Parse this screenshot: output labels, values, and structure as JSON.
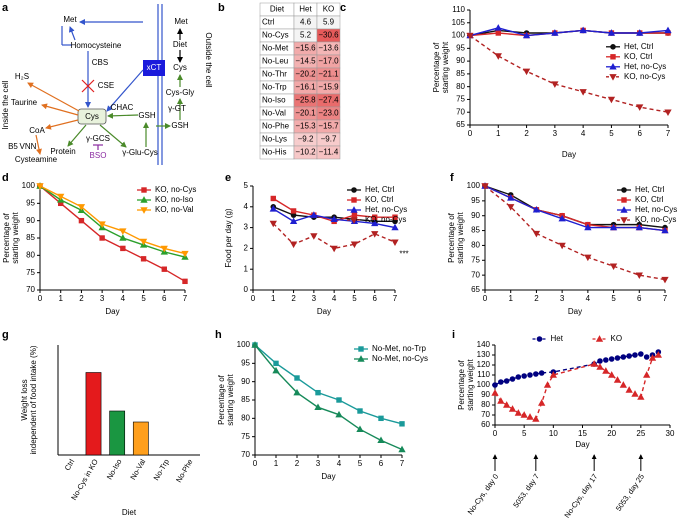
{
  "diagram": {
    "panel_label": "a",
    "labels": [
      "Met",
      "Homocysteine",
      "CBS",
      "CSE",
      "H₂S",
      "Taurine",
      "CoA",
      "B5",
      "VNN",
      "Cysteamine",
      "Cys",
      "CHAC",
      "GSH",
      "γ-GT",
      "Cys-Gly",
      "xCT",
      "Cys",
      "Diet",
      "Met",
      "γ-GCS",
      "BSO",
      "γ-Glu-Cys",
      "Protein",
      "GSH",
      "Inside the cell",
      "Outside the cell"
    ]
  },
  "table": {
    "panel_label": "b",
    "header": [
      "Diet",
      "Het",
      "KO"
    ],
    "rows": [
      [
        "Ctrl",
        "4.6",
        "5.9"
      ],
      [
        "No-Cys",
        "5.2",
        "−30.6"
      ],
      [
        "No-Met",
        "−15.6",
        "−13.6"
      ],
      [
        "No-Leu",
        "−14.5",
        "−17.0"
      ],
      [
        "No-Thr",
        "−20.2",
        "−21.1"
      ],
      [
        "No-Trp",
        "−16.1",
        "−15.9"
      ],
      [
        "No-Iso",
        "−25.8",
        "−27.4"
      ],
      [
        "No-Val",
        "−20.1",
        "−23.0"
      ],
      [
        "No-Phe",
        "−15.3",
        "−15.7"
      ],
      [
        "No-Lys",
        "−9.2",
        "−9.7"
      ],
      [
        "No-His",
        "−10.2",
        "−11.4"
      ]
    ]
  },
  "chart_data": [
    {
      "type": "line",
      "panel_label": "c",
      "xlabel": "Day",
      "ylabel": [
        "Percentage of",
        "starting weight"
      ],
      "x": [
        0,
        1,
        2,
        3,
        4,
        5,
        6,
        7
      ],
      "xlim": [
        0,
        7
      ],
      "xticks": [
        0,
        1,
        2,
        3,
        4,
        5,
        6,
        7
      ],
      "ylim": [
        65,
        110
      ],
      "yticks": [
        65,
        70,
        75,
        80,
        85,
        90,
        95,
        100,
        105,
        110
      ],
      "legend": "right",
      "series": [
        {
          "name": "Het, Ctrl",
          "color": "#111111",
          "marker": "circle",
          "dashed": false,
          "values": [
            100,
            102,
            101,
            101,
            102,
            101,
            101,
            101
          ]
        },
        {
          "name": "KO, Ctrl",
          "color": "#d62728",
          "marker": "square",
          "dashed": false,
          "values": [
            100,
            101,
            100,
            101,
            102,
            101,
            101,
            101
          ]
        },
        {
          "name": "Het, no-Cys",
          "color": "#1f1fd0",
          "marker": "triangle",
          "dashed": false,
          "values": [
            100,
            103,
            100,
            101,
            102,
            101,
            101,
            102
          ]
        },
        {
          "name": "KO, no-Cys",
          "color": "#b22222",
          "marker": "triangle-down",
          "dashed": true,
          "values": [
            100,
            92,
            86,
            81,
            78,
            75,
            72,
            70
          ]
        }
      ]
    },
    {
      "type": "line",
      "panel_label": "d",
      "xlabel": "Day",
      "ylabel": [
        "Percentage of",
        "starting weight"
      ],
      "x": [
        0,
        1,
        2,
        3,
        4,
        5,
        6,
        7
      ],
      "xlim": [
        0,
        7
      ],
      "xticks": [
        0,
        1,
        2,
        3,
        4,
        5,
        6,
        7
      ],
      "ylim": [
        70,
        100
      ],
      "yticks": [
        70,
        75,
        80,
        85,
        90,
        95,
        100
      ],
      "legend": "upper right",
      "series": [
        {
          "name": "KO, no-Cys",
          "color": "#d62728",
          "marker": "square",
          "dashed": false,
          "values": [
            100,
            95,
            90,
            85,
            82,
            79,
            76,
            72.5
          ]
        },
        {
          "name": "KO, no-Iso",
          "color": "#2ca02c",
          "marker": "triangle",
          "dashed": false,
          "values": [
            100,
            96,
            93,
            88,
            85,
            83,
            81,
            79.5
          ]
        },
        {
          "name": "KO, no-Val",
          "color": "#ff9900",
          "marker": "triangle-down",
          "dashed": false,
          "values": [
            100,
            97,
            94,
            89,
            87,
            84,
            82,
            80.5
          ]
        }
      ]
    },
    {
      "type": "line",
      "panel_label": "e",
      "xlabel": "Day",
      "ylabel": [
        "Food per day (g)"
      ],
      "annotation": "***",
      "x": [
        1,
        2,
        3,
        4,
        5,
        6,
        7
      ],
      "xlim": [
        0,
        7
      ],
      "xticks": [
        0,
        1,
        2,
        3,
        4,
        5,
        6,
        7
      ],
      "ylim": [
        0,
        5
      ],
      "yticks": [
        0,
        1,
        2,
        3,
        4,
        5
      ],
      "legend": "upper right",
      "series": [
        {
          "name": "Het, Ctrl",
          "color": "#111111",
          "marker": "circle",
          "dashed": false,
          "values": [
            4.0,
            3.6,
            3.5,
            3.5,
            3.4,
            3.3,
            3.3
          ]
        },
        {
          "name": "KO, Ctrl",
          "color": "#d62728",
          "marker": "square",
          "dashed": false,
          "values": [
            4.4,
            3.8,
            3.6,
            3.3,
            3.6,
            3.5,
            3.5
          ]
        },
        {
          "name": "Het, no-Cys",
          "color": "#1f1fd0",
          "marker": "triangle",
          "dashed": false,
          "values": [
            3.9,
            3.3,
            3.6,
            3.4,
            3.3,
            3.2,
            3.0
          ]
        },
        {
          "name": "KO, no-Cys",
          "color": "#b22222",
          "marker": "triangle-down",
          "dashed": true,
          "values": [
            3.2,
            2.2,
            2.6,
            2.0,
            2.2,
            2.7,
            2.3
          ]
        }
      ]
    },
    {
      "type": "line",
      "panel_label": "f",
      "xlabel": "Day",
      "ylabel": [
        "Percentage of",
        "starting weight"
      ],
      "x": [
        0,
        1,
        2,
        3,
        4,
        5,
        6,
        7
      ],
      "xlim": [
        0,
        7
      ],
      "xticks": [
        0,
        1,
        2,
        3,
        4,
        5,
        6,
        7
      ],
      "ylim": [
        65,
        100
      ],
      "yticks": [
        65,
        70,
        75,
        80,
        85,
        90,
        95,
        100
      ],
      "legend": "upper right",
      "series": [
        {
          "name": "Het, Ctrl",
          "color": "#111111",
          "marker": "circle",
          "dashed": false,
          "values": [
            100,
            97,
            92,
            90,
            87,
            87,
            87,
            86
          ]
        },
        {
          "name": "KO, Ctrl",
          "color": "#d62728",
          "marker": "square",
          "dashed": false,
          "values": [
            100,
            96,
            92,
            90,
            87,
            86,
            86,
            85
          ]
        },
        {
          "name": "Het, no-Cys",
          "color": "#1f1fd0",
          "marker": "triangle",
          "dashed": false,
          "values": [
            100,
            96,
            92,
            89,
            86,
            86,
            86,
            85
          ]
        },
        {
          "name": "KO, no-Cys",
          "color": "#b22222",
          "marker": "triangle-down",
          "dashed": true,
          "values": [
            100,
            93,
            84,
            80,
            76,
            73,
            70,
            68.5
          ]
        }
      ]
    },
    {
      "type": "bar",
      "panel_label": "g",
      "xlabel": "Diet",
      "ylabel": [
        "Weight loss",
        "independent of food intake (%)"
      ],
      "categories": [
        "Ctrl",
        "No-Cys in KO",
        "No-Iso",
        "No-Val",
        "No-Trp",
        "No-Phe"
      ],
      "values": [
        0,
        15,
        8,
        6,
        0,
        0
      ],
      "colors": [
        "#000000",
        "#e41a1c",
        "#1a9641",
        "#ff9f1c",
        "#000000",
        "#000000"
      ],
      "ylim": [
        0,
        20
      ]
    },
    {
      "type": "line",
      "panel_label": "h",
      "xlabel": "Day",
      "ylabel": [
        "Percentage of",
        "starting weight"
      ],
      "x": [
        0,
        1,
        2,
        3,
        4,
        5,
        6,
        7
      ],
      "xlim": [
        0,
        7
      ],
      "xticks": [
        0,
        1,
        2,
        3,
        4,
        5,
        6,
        7
      ],
      "ylim": [
        70,
        100
      ],
      "yticks": [
        70,
        75,
        80,
        85,
        90,
        95,
        100
      ],
      "legend": "upper right",
      "series": [
        {
          "name": "No-Met, no-Trp",
          "color": "#1a9a9a",
          "marker": "square",
          "dashed": false,
          "values": [
            100,
            95,
            91,
            87,
            85,
            82,
            80,
            78.5
          ]
        },
        {
          "name": "No-Met, no-Cys",
          "color": "#178a5a",
          "marker": "triangle",
          "dashed": false,
          "values": [
            100,
            93,
            87,
            83,
            81,
            77,
            74,
            71.5
          ]
        }
      ]
    },
    {
      "type": "line",
      "panel_label": "i",
      "xlabel": "Day",
      "ylabel": [
        "Percentage of",
        "starting weight"
      ],
      "xlim": [
        0,
        30
      ],
      "xticks": [
        0,
        5,
        10,
        15,
        20,
        25,
        30
      ],
      "ylim": [
        60,
        140
      ],
      "yticks": [
        60,
        70,
        80,
        90,
        100,
        110,
        120,
        130,
        140
      ],
      "legend": "upper center",
      "events": [
        {
          "x": 0,
          "label": "No-Cys, day 0"
        },
        {
          "x": 7,
          "label": "5053, day 7"
        },
        {
          "x": 17,
          "label": "No-Cys, day 17"
        },
        {
          "x": 25,
          "label": "5053, day 25"
        }
      ],
      "series": [
        {
          "name": "Het",
          "color": "#000080",
          "marker": "circle",
          "dashed": true,
          "x": [
            0,
            1,
            2,
            3,
            4,
            5,
            6,
            7,
            8,
            10,
            17,
            18,
            19,
            20,
            21,
            22,
            23,
            24,
            25,
            26,
            27,
            28
          ],
          "values": [
            100,
            103,
            104,
            106,
            108,
            109,
            110,
            111,
            112,
            113,
            121,
            124,
            125,
            126,
            127,
            128,
            129,
            130,
            131,
            128,
            130,
            133
          ]
        },
        {
          "name": "KO",
          "color": "#d62728",
          "marker": "triangle",
          "dashed": true,
          "x": [
            0,
            1,
            2,
            3,
            4,
            5,
            6,
            7,
            8,
            9,
            10,
            17,
            18,
            19,
            20,
            21,
            22,
            23,
            24,
            25,
            26,
            27,
            28
          ],
          "values": [
            92,
            84,
            80,
            76,
            72,
            70,
            68,
            66,
            82,
            100,
            110,
            121,
            118,
            114,
            110,
            105,
            100,
            95,
            91,
            88,
            110,
            127,
            130
          ]
        }
      ]
    }
  ]
}
